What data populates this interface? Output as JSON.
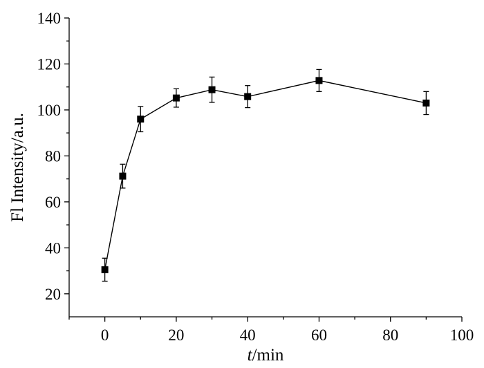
{
  "chart_data": {
    "type": "line",
    "title": "",
    "xlabel_italic": "t",
    "xlabel_rest": "/min",
    "ylabel": "Fl Intensity/a.u.",
    "xlim": [
      -10,
      100
    ],
    "ylim": [
      10,
      140
    ],
    "x_ticks": [
      0,
      20,
      40,
      60,
      80,
      100
    ],
    "y_ticks": [
      20,
      40,
      60,
      80,
      100,
      120,
      140
    ],
    "grid": false,
    "legend": "none",
    "series": [
      {
        "x": [
          0,
          5,
          10,
          20,
          30,
          40,
          60,
          90
        ],
        "y": [
          30.5,
          71.2,
          96.0,
          105.2,
          108.8,
          105.8,
          112.8,
          103.0
        ],
        "error": [
          5.0,
          5.2,
          5.5,
          4.0,
          5.5,
          4.8,
          4.8,
          5.0
        ]
      }
    ]
  }
}
